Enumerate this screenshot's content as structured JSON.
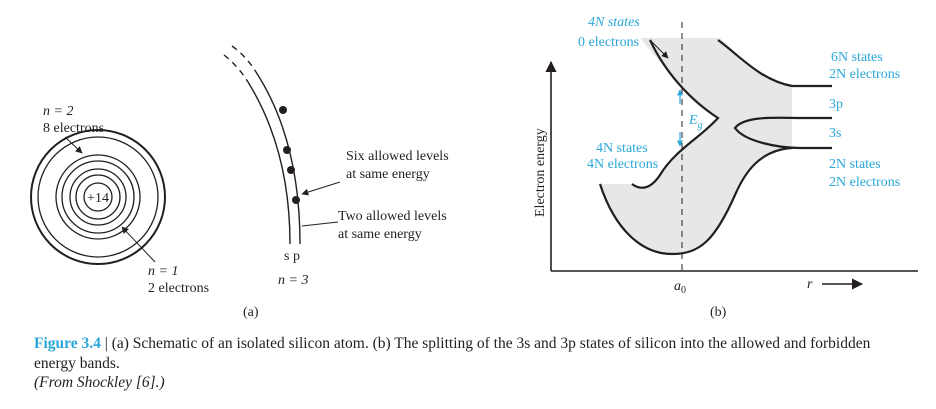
{
  "figure": {
    "left": {
      "n2_label": "n = 2",
      "n2_electrons": "8 electrons",
      "nucleus": "+14",
      "n1_label": "n = 1",
      "n1_electrons": "2 electrons",
      "six_levels_1": "Six allowed levels",
      "six_levels_2": "at same energy",
      "two_levels_1": "Two allowed levels",
      "two_levels_2": "at same energy",
      "sp_label": "s p",
      "n3_label": "n = 3",
      "panel": "(a)"
    },
    "right": {
      "top_states": "4N states",
      "top_electrons": "0 electrons",
      "mid_states": "4N states",
      "mid_electrons": "4N electrons",
      "gap": "E",
      "gap_sub": "g",
      "upper_right_states": "6N states",
      "upper_right_electrons": "2N electrons",
      "p_label": "3p",
      "s_label": "3s",
      "lower_right_states": "2N states",
      "lower_right_electrons": "2N electrons",
      "y_axis": "Electron energy",
      "a0": "a",
      "a0_sub": "0",
      "r_axis": "r",
      "panel": "(b)"
    }
  },
  "caption": {
    "figure_label": "Figure 3.4",
    "separator": " | ",
    "text": "(a) Schematic of an isolated silicon atom. (b) The splitting of the 3s and 3p states of silicon into the allowed and forbidden energy bands.",
    "source": "(From Shockley [6].)"
  },
  "colors": {
    "accent": "#2aa7d8",
    "text": "#231f20",
    "band_fill": "#e6e7e8"
  }
}
